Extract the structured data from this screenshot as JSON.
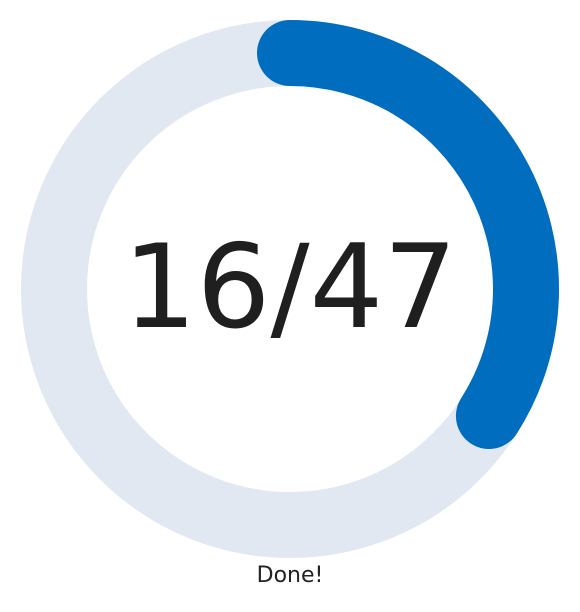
{
  "progress": {
    "completed": 16,
    "total": 47,
    "count_text": "16/47",
    "fraction": 0.3404,
    "status_text": "Done!"
  },
  "colors": {
    "track": "#e1e8f1",
    "fill": "#006dbf",
    "text": "#1f1f1f"
  }
}
